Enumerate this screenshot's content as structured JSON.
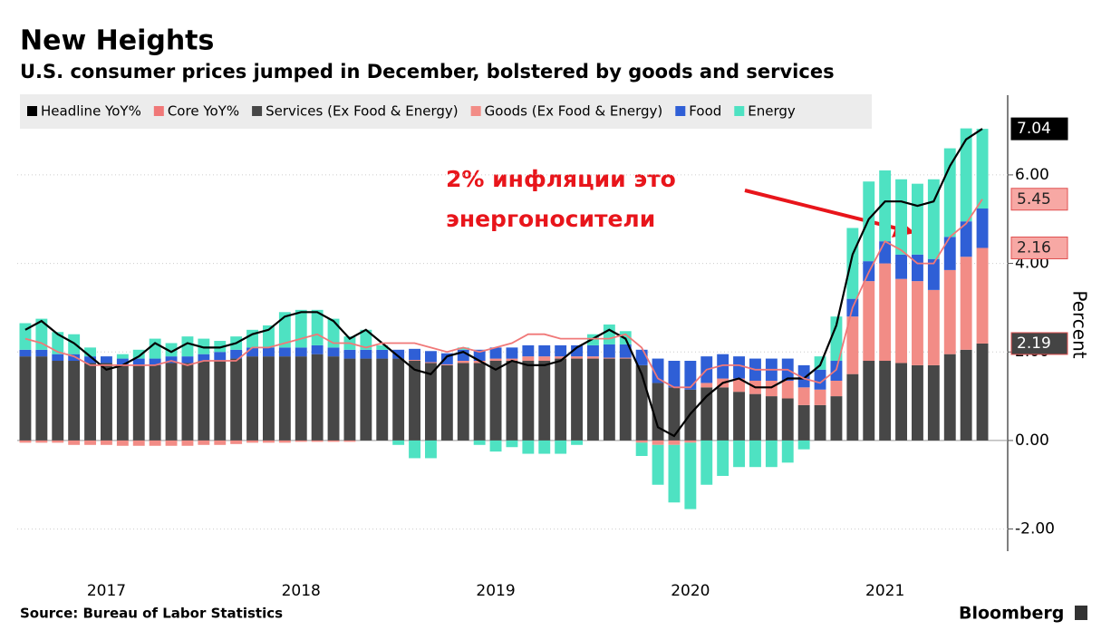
{
  "chart_data": {
    "type": "bar",
    "title": "New Heights",
    "subtitle": "U.S. consumer prices jumped in December, bolstered by goods and services",
    "y_label": "Percent",
    "source": "Source: Bureau of Labor Statistics",
    "brand": "Bloomberg",
    "annotation": [
      "2% инфляции это",
      "энергоносители"
    ],
    "categories": [
      null,
      null,
      null,
      null,
      null,
      "2017",
      null,
      null,
      null,
      null,
      null,
      null,
      null,
      null,
      null,
      null,
      null,
      "2018",
      null,
      null,
      null,
      null,
      null,
      null,
      null,
      null,
      null,
      null,
      null,
      "2019",
      null,
      null,
      null,
      null,
      null,
      null,
      null,
      null,
      null,
      null,
      null,
      "2020",
      null,
      null,
      null,
      null,
      null,
      null,
      null,
      null,
      null,
      null,
      null,
      "2021",
      null,
      null,
      null,
      null,
      null,
      null
    ],
    "ylim": [
      -2.5,
      7.8
    ],
    "yticks": [
      {
        "value": -2,
        "label": "-2.00"
      },
      {
        "value": 0,
        "label": "0.00"
      },
      {
        "value": 2,
        "label": "2.00"
      },
      {
        "value": 4,
        "label": "4.00"
      },
      {
        "value": 6,
        "label": "6.00"
      }
    ],
    "grid": true,
    "series": [
      {
        "name": "Headline YoY%",
        "type": "line",
        "color": "#000000",
        "values": [
          2.5,
          2.7,
          2.4,
          2.2,
          1.9,
          1.6,
          1.7,
          1.9,
          2.2,
          2.0,
          2.2,
          2.1,
          2.1,
          2.2,
          2.4,
          2.5,
          2.8,
          2.9,
          2.9,
          2.7,
          2.3,
          2.5,
          2.2,
          1.9,
          1.6,
          1.5,
          1.9,
          2.0,
          1.8,
          1.6,
          1.8,
          1.7,
          1.7,
          1.8,
          2.1,
          2.3,
          2.5,
          2.3,
          1.5,
          0.3,
          0.1,
          0.6,
          1.0,
          1.3,
          1.4,
          1.2,
          1.2,
          1.4,
          1.4,
          1.7,
          2.6,
          4.2,
          5.0,
          5.4,
          5.4,
          5.3,
          5.4,
          6.2,
          6.8,
          7.04
        ]
      },
      {
        "name": "Core YoY%",
        "type": "line",
        "color": "#f07878",
        "values": [
          2.3,
          2.2,
          2.0,
          1.9,
          1.7,
          1.7,
          1.7,
          1.7,
          1.7,
          1.8,
          1.7,
          1.8,
          1.8,
          1.8,
          2.1,
          2.1,
          2.2,
          2.3,
          2.4,
          2.2,
          2.2,
          2.1,
          2.2,
          2.2,
          2.2,
          2.1,
          2.0,
          2.1,
          2.0,
          2.1,
          2.2,
          2.4,
          2.4,
          2.3,
          2.3,
          2.3,
          2.3,
          2.4,
          2.1,
          1.4,
          1.2,
          1.2,
          1.6,
          1.7,
          1.7,
          1.6,
          1.6,
          1.6,
          1.4,
          1.3,
          1.6,
          3.0,
          3.8,
          4.5,
          4.3,
          4.0,
          4.0,
          4.6,
          4.9,
          5.45
        ]
      },
      {
        "name": "Services (Ex Food & Energy)",
        "color": "#474747",
        "values": [
          1.9,
          1.9,
          1.8,
          1.8,
          1.75,
          1.75,
          1.7,
          1.7,
          1.7,
          1.75,
          1.75,
          1.8,
          1.8,
          1.85,
          1.9,
          1.9,
          1.9,
          1.9,
          1.95,
          1.9,
          1.85,
          1.85,
          1.85,
          1.85,
          1.8,
          1.75,
          1.7,
          1.75,
          1.75,
          1.8,
          1.8,
          1.8,
          1.8,
          1.85,
          1.85,
          1.85,
          1.85,
          1.85,
          1.7,
          1.3,
          1.2,
          1.15,
          1.2,
          1.2,
          1.1,
          1.05,
          1.0,
          0.95,
          0.8,
          0.8,
          1.0,
          1.5,
          1.8,
          1.8,
          1.75,
          1.7,
          1.7,
          1.95,
          2.05,
          2.19
        ]
      },
      {
        "name": "Goods (Ex Food & Energy)",
        "color": "#f28c86",
        "values": [
          -0.05,
          -0.05,
          -0.05,
          -0.1,
          -0.1,
          -0.1,
          -0.12,
          -0.12,
          -0.12,
          -0.12,
          -0.12,
          -0.1,
          -0.1,
          -0.08,
          -0.05,
          -0.05,
          -0.05,
          -0.03,
          -0.03,
          -0.03,
          -0.03,
          0,
          0,
          0,
          0.02,
          0.02,
          0.02,
          0.05,
          0.05,
          0.05,
          0.05,
          0.1,
          0.1,
          0.05,
          0.05,
          0.05,
          0.02,
          0.02,
          -0.05,
          -0.1,
          -0.1,
          -0.05,
          0.1,
          0.2,
          0.3,
          0.3,
          0.35,
          0.4,
          0.4,
          0.35,
          0.35,
          1.3,
          1.8,
          2.2,
          1.9,
          1.9,
          1.7,
          1.9,
          2.1,
          2.16
        ]
      },
      {
        "name": "Food",
        "color": "#2f5fd6",
        "values": [
          0.15,
          0.15,
          0.15,
          0.15,
          0.15,
          0.15,
          0.15,
          0.15,
          0.15,
          0.15,
          0.15,
          0.15,
          0.2,
          0.2,
          0.2,
          0.2,
          0.2,
          0.2,
          0.2,
          0.2,
          0.2,
          0.2,
          0.2,
          0.2,
          0.25,
          0.25,
          0.25,
          0.25,
          0.25,
          0.25,
          0.25,
          0.25,
          0.25,
          0.25,
          0.25,
          0.25,
          0.3,
          0.3,
          0.35,
          0.55,
          0.6,
          0.65,
          0.6,
          0.55,
          0.5,
          0.5,
          0.5,
          0.5,
          0.5,
          0.45,
          0.45,
          0.4,
          0.45,
          0.5,
          0.55,
          0.6,
          0.7,
          0.75,
          0.8,
          0.89
        ]
      },
      {
        "name": "Energy",
        "color": "#4ee2c2",
        "values": [
          0.6,
          0.7,
          0.5,
          0.45,
          0.2,
          0.0,
          0.1,
          0.2,
          0.45,
          0.3,
          0.45,
          0.35,
          0.25,
          0.3,
          0.4,
          0.5,
          0.8,
          0.85,
          0.8,
          0.65,
          0.3,
          0.45,
          0.1,
          -0.1,
          -0.4,
          -0.4,
          0.0,
          0.05,
          -0.1,
          -0.25,
          -0.15,
          -0.3,
          -0.3,
          -0.3,
          -0.1,
          0.25,
          0.45,
          0.3,
          -0.3,
          -0.9,
          -1.3,
          -1.5,
          -1.0,
          -0.8,
          -0.6,
          -0.6,
          -0.6,
          -0.5,
          -0.2,
          0.3,
          1.0,
          1.6,
          1.8,
          1.6,
          1.7,
          1.6,
          1.8,
          2.0,
          2.1,
          1.8
        ]
      }
    ]
  }
}
